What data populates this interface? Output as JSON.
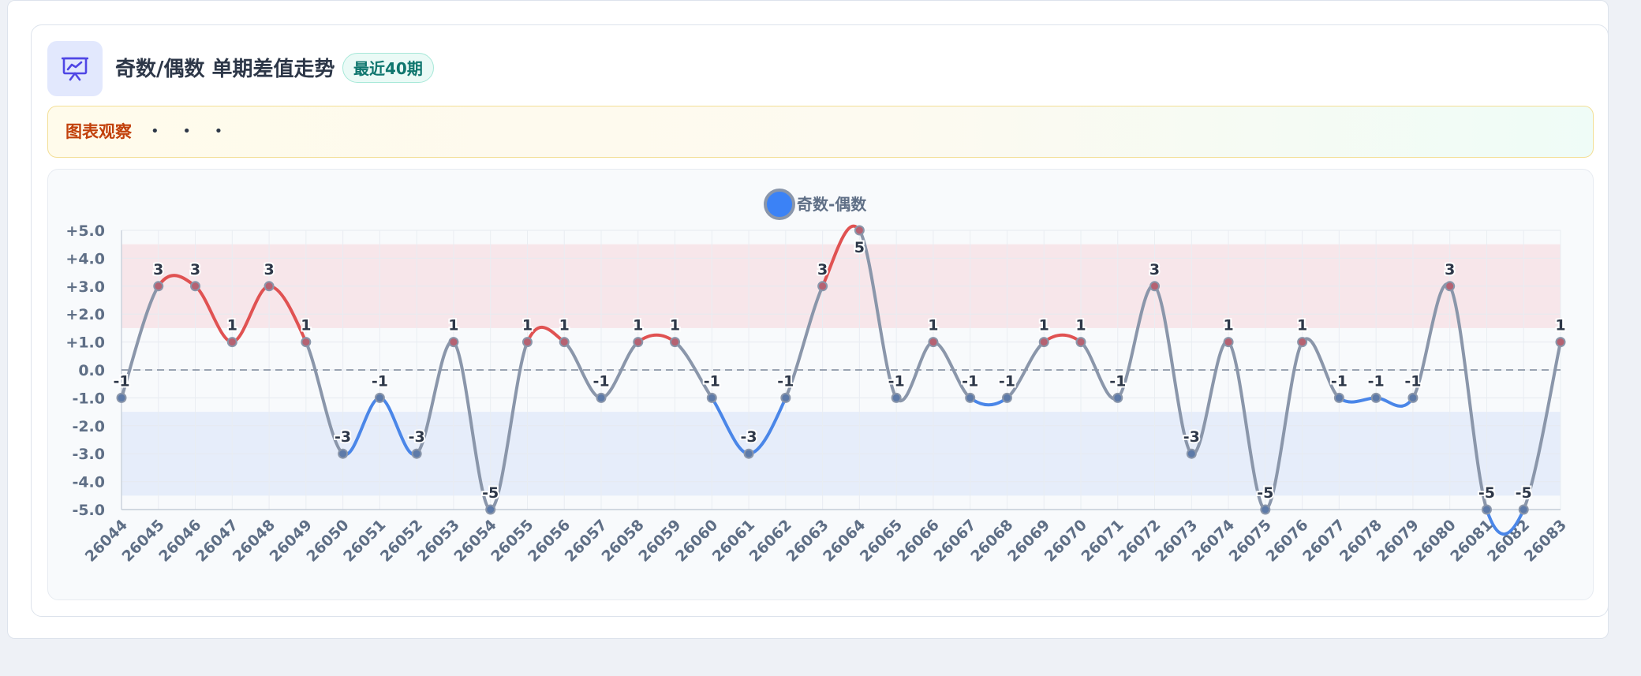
{
  "header": {
    "title": "奇数/偶数 单期差值走势",
    "badge": "最近40期",
    "icon": "presentation-chart-icon"
  },
  "observation": {
    "label": "图表观察",
    "dots": "• • •"
  },
  "colors": {
    "accent": "#4f46e5",
    "positive": "#e05252",
    "negative": "#4a86e8",
    "neutral": "#8a96aa",
    "band_high": "#f7e6ea",
    "band_low": "#e6edfa"
  },
  "chart_data": {
    "type": "line",
    "series": [
      {
        "name": "奇数-偶数",
        "values": [
          -1,
          3,
          3,
          1,
          3,
          1,
          -3,
          -1,
          -3,
          1,
          -5,
          1,
          1,
          -1,
          1,
          1,
          -1,
          -3,
          -1,
          3,
          5,
          -1,
          1,
          -1,
          -1,
          1,
          1,
          -1,
          3,
          -3,
          1,
          -5,
          1,
          -1,
          -1,
          -1,
          3,
          -5,
          -5,
          1
        ]
      }
    ],
    "categories": [
      "26044",
      "26045",
      "26046",
      "26047",
      "26048",
      "26049",
      "26050",
      "26051",
      "26052",
      "26053",
      "26054",
      "26055",
      "26056",
      "26057",
      "26058",
      "26059",
      "26060",
      "26061",
      "26062",
      "26063",
      "26064",
      "26065",
      "26066",
      "26067",
      "26068",
      "26069",
      "26070",
      "26071",
      "26072",
      "26073",
      "26074",
      "26075",
      "26076",
      "26077",
      "26078",
      "26079",
      "26080",
      "26081",
      "26082",
      "26083"
    ],
    "ylim": [
      -5,
      5
    ],
    "yticks": [
      "+5.0",
      "+4.0",
      "+3.0",
      "+2.0",
      "+1.0",
      "0.0",
      "-1.0",
      "-2.0",
      "-3.0",
      "-4.0",
      "-5.0"
    ],
    "reference_line": 0,
    "bands": [
      {
        "from": 1.5,
        "to": 4.5,
        "color": "#f7e6ea"
      },
      {
        "from": -4.5,
        "to": -1.5,
        "color": "#e6edfa"
      }
    ],
    "legend": {
      "position": "top-center"
    },
    "grid": true
  }
}
